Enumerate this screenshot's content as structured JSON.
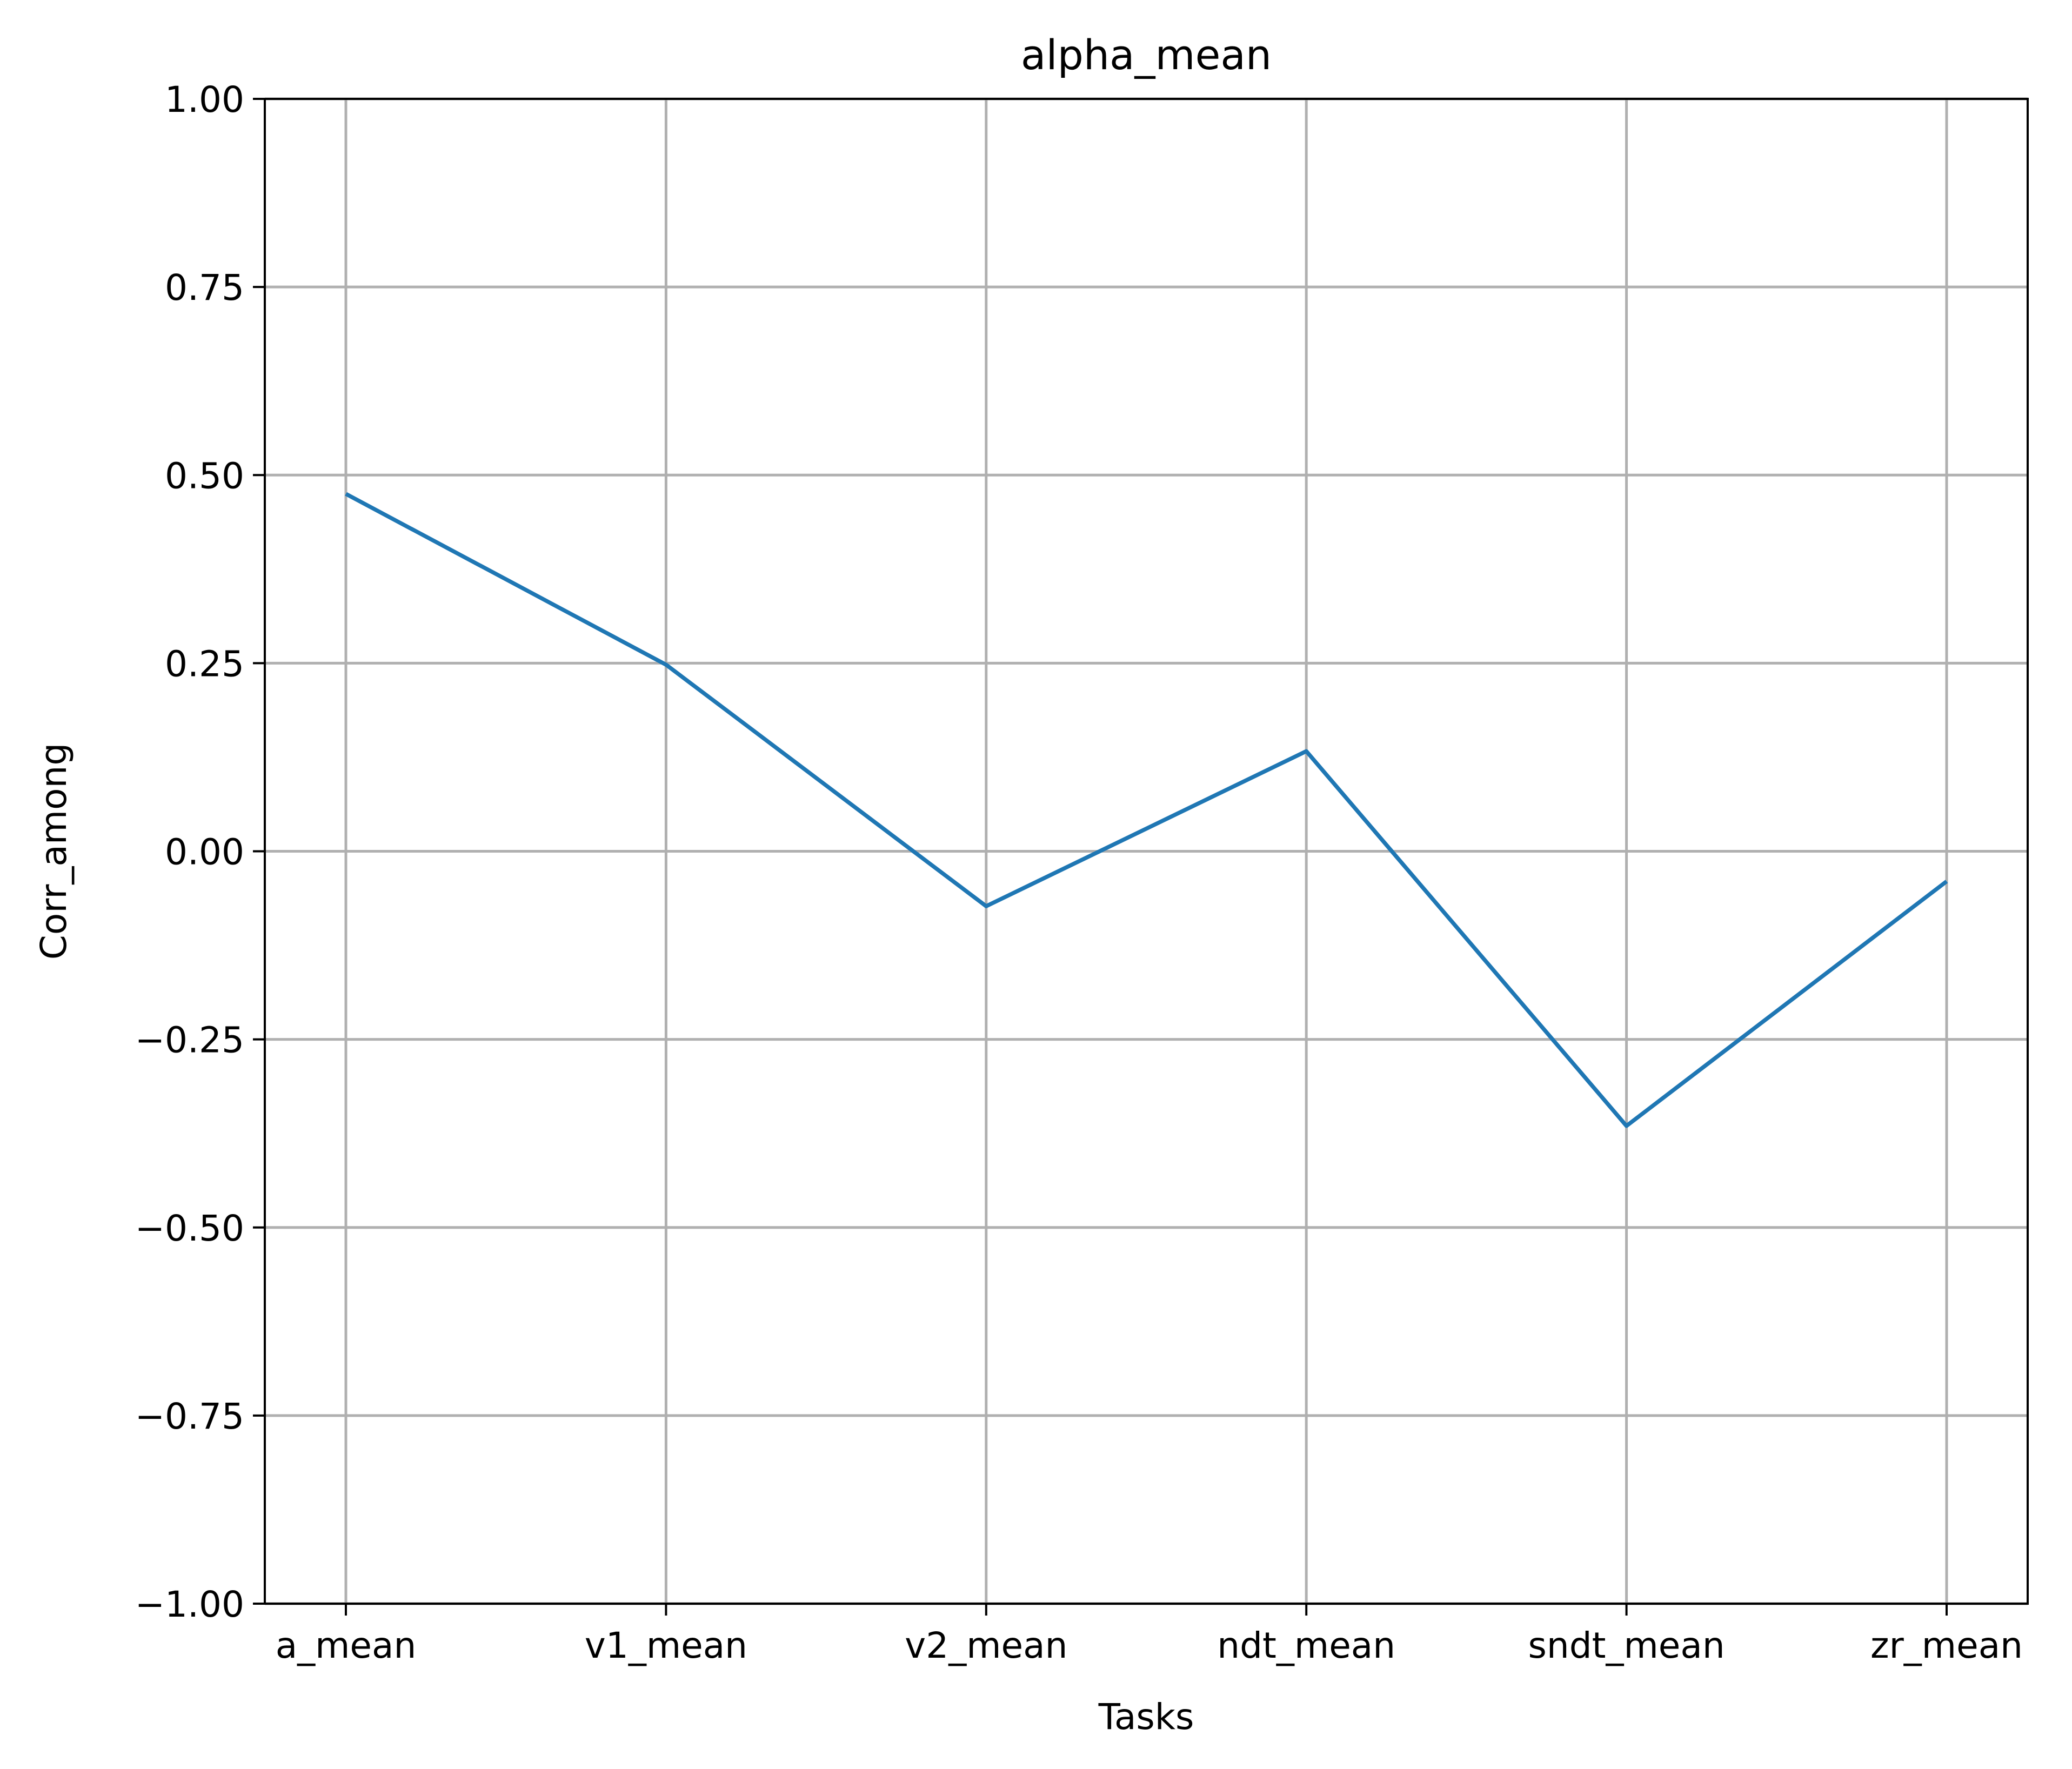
{
  "chart_data": {
    "type": "line",
    "title": "alpha_mean",
    "xlabel": "Tasks",
    "ylabel": "Corr_among",
    "categories": [
      "a_mean",
      "v1_mean",
      "v2_mean",
      "ndt_mean",
      "sndt_mean",
      "zr_mean"
    ],
    "series": [
      {
        "values": [
          0.475,
          0.248,
          -0.073,
          0.133,
          -0.365,
          -0.04
        ],
        "color": "#1f77b4"
      }
    ],
    "ylim": [
      -1.0,
      1.0
    ],
    "yticks": [
      -1.0,
      -0.75,
      -0.5,
      -0.25,
      0.0,
      0.25,
      0.5,
      0.75,
      1.0
    ],
    "ytick_labels": [
      "−1.00",
      "−0.75",
      "−0.50",
      "−0.25",
      "0.00",
      "0.25",
      "0.50",
      "0.75",
      "1.00"
    ],
    "grid": true,
    "legend": "none"
  }
}
